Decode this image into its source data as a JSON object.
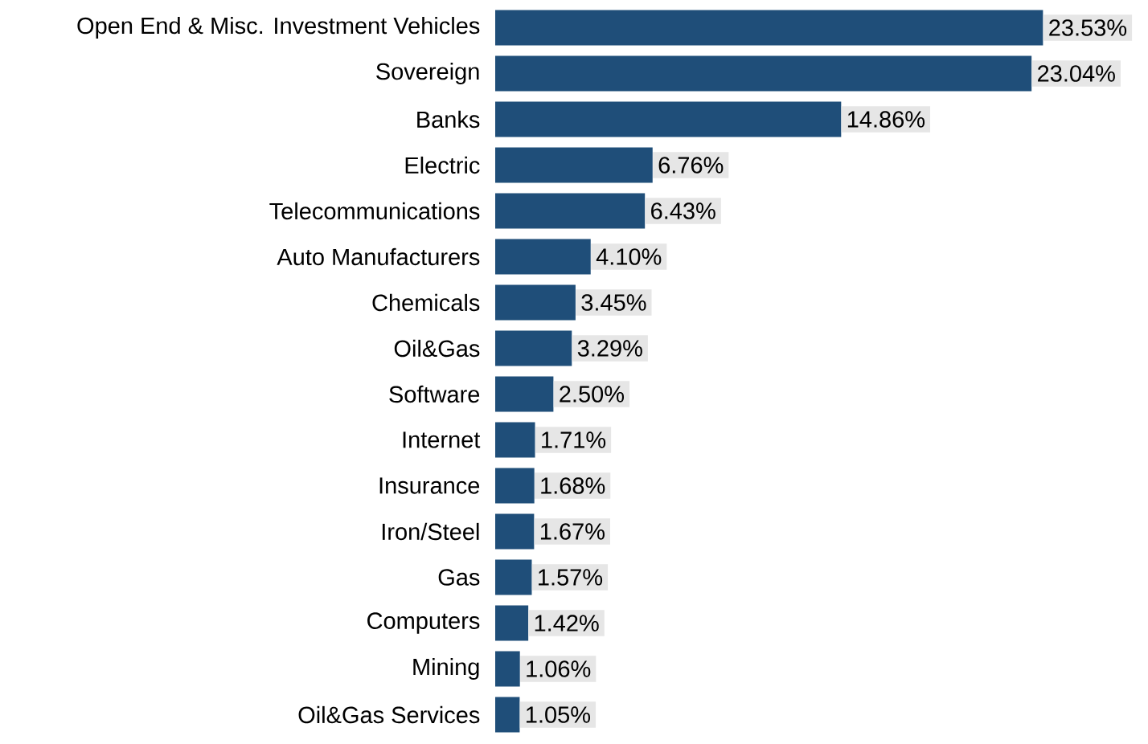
{
  "chart_data": {
    "type": "bar",
    "orientation": "horizontal",
    "color": "#1f4e79",
    "categories": [
      "Open End & Misc. Investment Vehicles",
      "Sovereign",
      "Banks",
      "Electric",
      "Telecommunications",
      "Auto Manufacturers",
      "Chemicals",
      "Oil&Gas",
      "Software",
      "Internet",
      "Insurance",
      "Iron/Steel",
      "Gas",
      "Computers",
      "Mining",
      "Oil&Gas Services"
    ],
    "values": [
      23.53,
      23.04,
      14.86,
      6.76,
      6.43,
      4.1,
      3.45,
      3.29,
      2.5,
      1.71,
      1.68,
      1.67,
      1.57,
      1.42,
      1.06,
      1.05
    ],
    "value_labels": [
      "23.53%",
      "23.04%",
      "14.86%",
      "6.76%",
      "6.43%",
      "4.10%",
      "3.45%",
      "3.29%",
      "2.50%",
      "1.71%",
      "1.68%",
      "1.67%",
      "1.57%",
      "1.42%",
      "1.06%",
      "1.05%"
    ]
  }
}
